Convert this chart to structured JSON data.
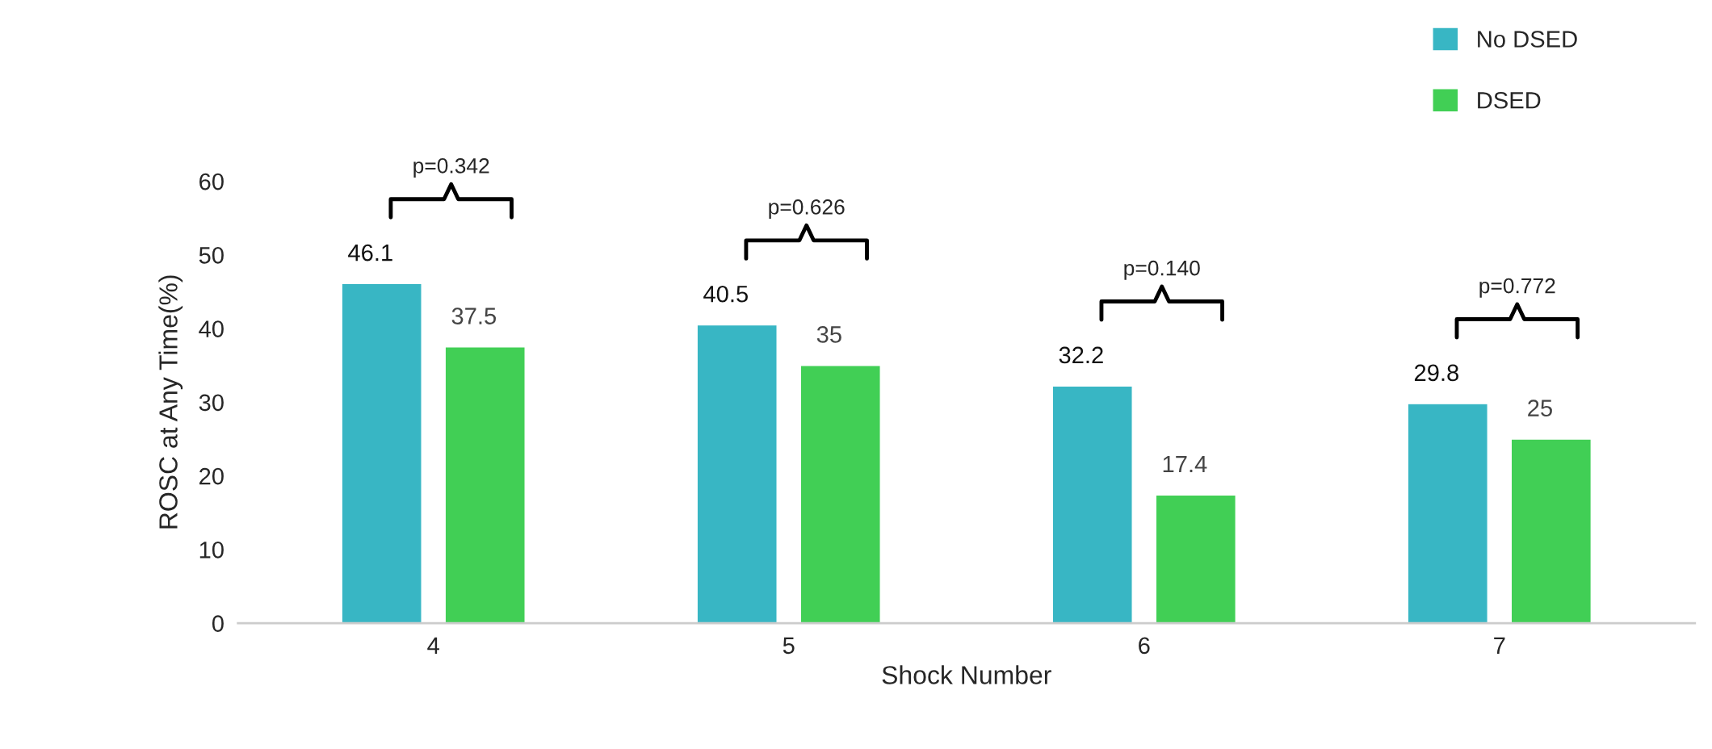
{
  "chart_data": {
    "type": "bar",
    "xlabel": "Shock Number",
    "ylabel": "ROSC at Any Time(%)",
    "categories": [
      "4",
      "5",
      "6",
      "7"
    ],
    "series": [
      {
        "name": "No DSED",
        "color": "#38b6c4",
        "values": [
          46.1,
          40.5,
          32.2,
          29.8
        ]
      },
      {
        "name": "DSED",
        "color": "#41cf55",
        "values": [
          37.5,
          35,
          17.4,
          25
        ]
      }
    ],
    "ylim": [
      0,
      60
    ],
    "yticks": [
      0,
      10,
      20,
      30,
      40,
      50,
      60
    ],
    "grid": false,
    "legend": "top right",
    "data_labels": true,
    "annotations": [
      "p=0.342",
      "p=0.626",
      "p=0.140",
      "p=0.772"
    ]
  }
}
